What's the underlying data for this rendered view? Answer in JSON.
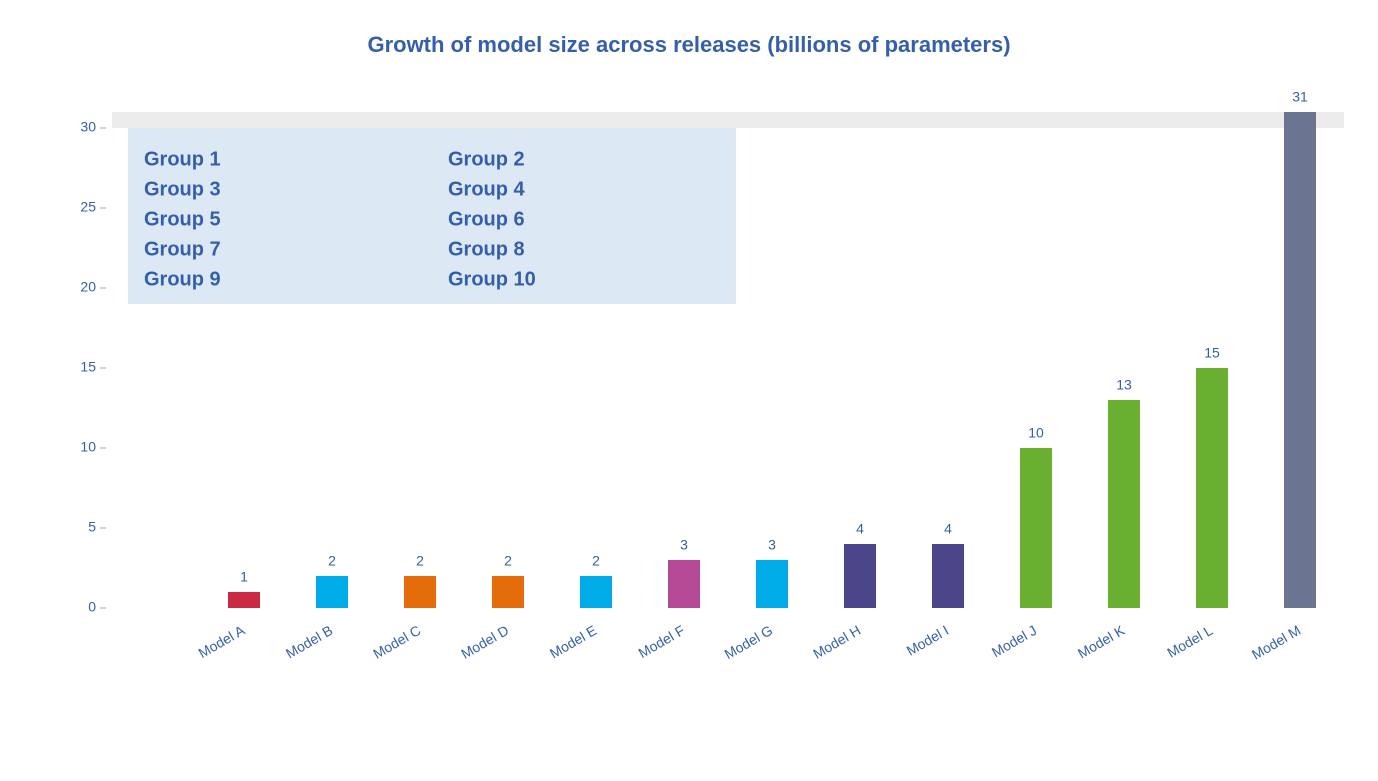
{
  "chart_data": {
    "type": "bar",
    "title": "Growth of model size across releases (billions of parameters)",
    "categories": [
      "Model A",
      "Model B",
      "Model C",
      "Model D",
      "Model E",
      "Model F",
      "Model G",
      "Model H",
      "Model I",
      "Model J",
      "Model K",
      "Model L",
      "Model M"
    ],
    "values": [
      1,
      2,
      2,
      2,
      2,
      3,
      3,
      4,
      4,
      10,
      13,
      15,
      31
    ],
    "colors": [
      "#cc2944",
      "#00ade8",
      "#e46c0a",
      "#e46c0a",
      "#00ade8",
      "#b44a96",
      "#00ade8",
      "#4b4589",
      "#4b4589",
      "#69b030",
      "#69b030",
      "#69b030",
      "#6b7490"
    ],
    "legend": [
      {
        "name": "Group 1",
        "color": "#cc2944"
      },
      {
        "name": "Group 2",
        "color": "#4b4589"
      },
      {
        "name": "Group 3",
        "color": "#e0aaa0"
      },
      {
        "name": "Group 4",
        "color": "#a8cfa0"
      },
      {
        "name": "Group 5",
        "color": "#e46c0a"
      },
      {
        "name": "Group 6",
        "color": "#69b030"
      },
      {
        "name": "Group 7",
        "color": "#00ade8"
      },
      {
        "name": "Group 8",
        "color": "#6b7490"
      },
      {
        "name": "Group 9",
        "color": "#b44a96"
      },
      {
        "name": "Group 10",
        "color": "#365fab"
      }
    ],
    "ylim": [
      0,
      31
    ],
    "yticks": [
      0,
      5,
      10,
      15,
      20,
      25,
      30
    ],
    "grid": false
  }
}
